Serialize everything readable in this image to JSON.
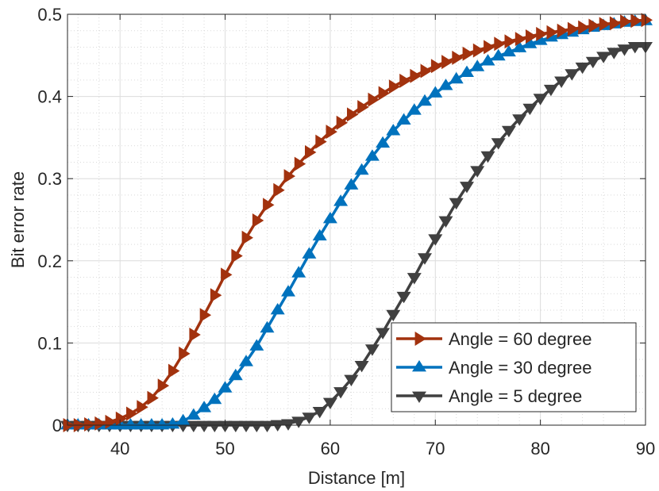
{
  "chart_data": {
    "type": "line",
    "title": "",
    "xlabel": "Distance [m]",
    "ylabel": "Bit error rate",
    "xlim": [
      35,
      90
    ],
    "ylim": [
      0,
      0.5
    ],
    "xticks": [
      40,
      50,
      60,
      70,
      80,
      90
    ],
    "xtick_labels": [
      "40",
      "50",
      "60",
      "70",
      "80",
      "90"
    ],
    "yticks": [
      0,
      0.1,
      0.2,
      0.3,
      0.4,
      0.5
    ],
    "ytick_labels": [
      "0",
      "0.1",
      "0.2",
      "0.3",
      "0.4",
      "0.5"
    ],
    "grid": true,
    "minor_grid": true,
    "legend_position": "bottom-right",
    "x": [
      35,
      36,
      37,
      38,
      39,
      40,
      41,
      42,
      43,
      44,
      45,
      46,
      47,
      48,
      49,
      50,
      51,
      52,
      53,
      54,
      55,
      56,
      57,
      58,
      59,
      60,
      61,
      62,
      63,
      64,
      65,
      66,
      67,
      68,
      69,
      70,
      71,
      72,
      73,
      74,
      75,
      76,
      77,
      78,
      79,
      80,
      81,
      82,
      83,
      84,
      85,
      86,
      87,
      88,
      89,
      90
    ],
    "series": [
      {
        "name": "Angle = 60 degree",
        "color": "#A2320E",
        "marker": "triangle-right",
        "values": [
          0.0,
          0.0,
          0.001,
          0.002,
          0.004,
          0.008,
          0.014,
          0.022,
          0.033,
          0.048,
          0.066,
          0.087,
          0.11,
          0.134,
          0.158,
          0.183,
          0.206,
          0.228,
          0.249,
          0.268,
          0.286,
          0.303,
          0.318,
          0.332,
          0.345,
          0.357,
          0.368,
          0.378,
          0.387,
          0.396,
          0.404,
          0.412,
          0.419,
          0.425,
          0.431,
          0.437,
          0.442,
          0.447,
          0.452,
          0.456,
          0.46,
          0.464,
          0.467,
          0.47,
          0.473,
          0.476,
          0.478,
          0.48,
          0.482,
          0.484,
          0.486,
          0.488,
          0.489,
          0.491,
          0.492,
          0.493
        ]
      },
      {
        "name": "Angle = 30 degree",
        "color": "#0072BD",
        "marker": "triangle-up",
        "values": [
          0.0,
          0.0,
          0.0,
          0.0,
          0.0,
          0.0,
          0.0,
          0.0,
          0.0,
          0.0,
          0.001,
          0.005,
          0.012,
          0.021,
          0.031,
          0.045,
          0.06,
          0.077,
          0.096,
          0.118,
          0.14,
          0.162,
          0.185,
          0.208,
          0.23,
          0.251,
          0.272,
          0.292,
          0.31,
          0.327,
          0.343,
          0.358,
          0.371,
          0.383,
          0.394,
          0.404,
          0.413,
          0.421,
          0.429,
          0.436,
          0.443,
          0.449,
          0.454,
          0.459,
          0.464,
          0.468,
          0.472,
          0.475,
          0.478,
          0.481,
          0.484,
          0.486,
          0.488,
          0.49,
          0.491,
          0.492
        ]
      },
      {
        "name": "Angle = 5 degree",
        "color": "#404040",
        "marker": "triangle-down",
        "values": [
          0.0,
          0.0,
          0.0,
          0.0,
          0.0,
          0.0,
          0.0,
          0.0,
          0.0,
          0.0,
          0.0,
          0.0,
          0.0,
          0.0,
          0.0,
          0.0,
          0.0,
          0.0,
          0.0,
          0.0,
          0.001,
          0.002,
          0.005,
          0.01,
          0.017,
          0.028,
          0.041,
          0.056,
          0.073,
          0.093,
          0.113,
          0.135,
          0.157,
          0.18,
          0.204,
          0.227,
          0.249,
          0.271,
          0.291,
          0.31,
          0.328,
          0.344,
          0.359,
          0.373,
          0.386,
          0.398,
          0.409,
          0.419,
          0.428,
          0.436,
          0.443,
          0.449,
          0.454,
          0.458,
          0.461,
          0.461
        ]
      }
    ]
  }
}
